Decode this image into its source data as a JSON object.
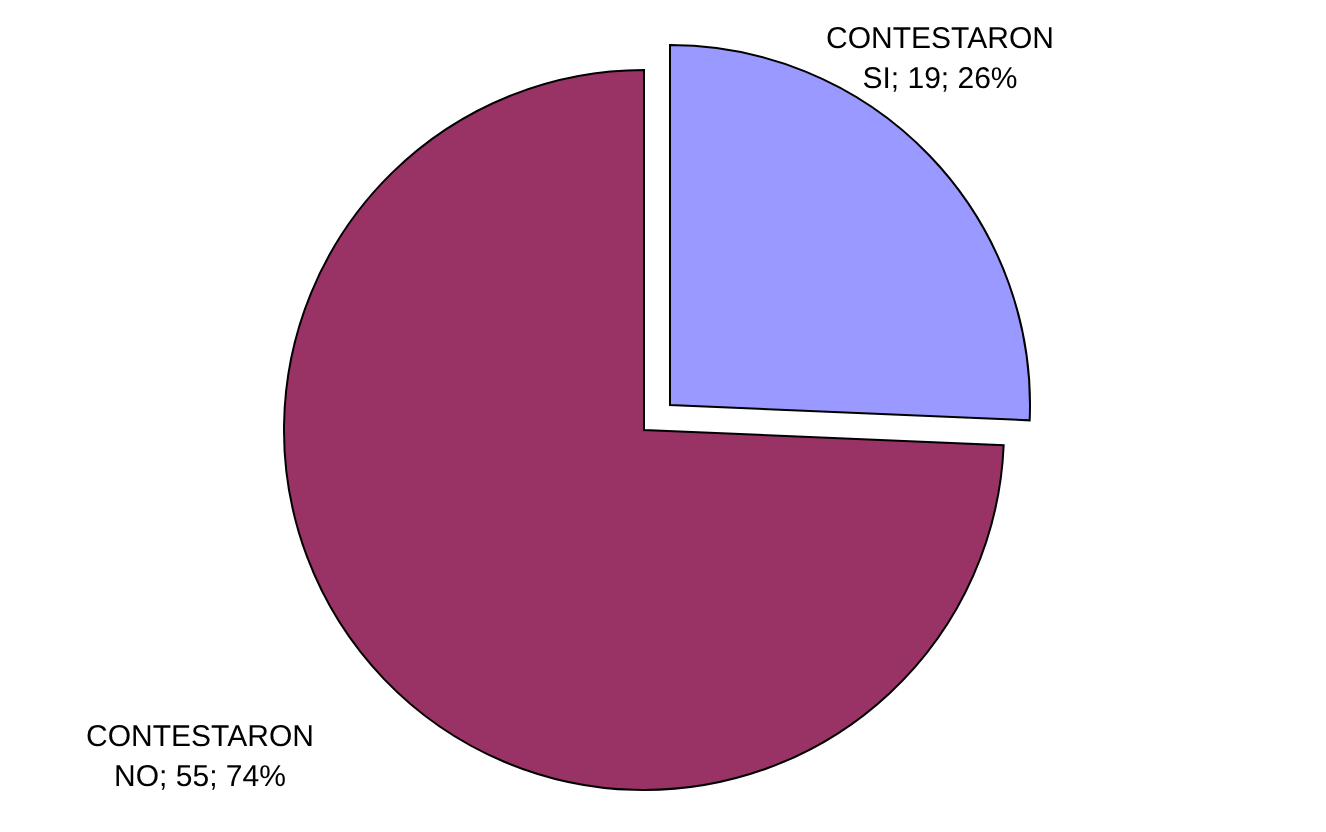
{
  "chart_data": {
    "type": "pie",
    "categories": [
      "CONTESTARON SI",
      "CONTESTARON NO"
    ],
    "values": [
      19,
      55
    ],
    "colors": [
      "#9999ff",
      "#993366"
    ],
    "value_labels": [
      "19; 26%",
      "55; 74%"
    ]
  }
}
